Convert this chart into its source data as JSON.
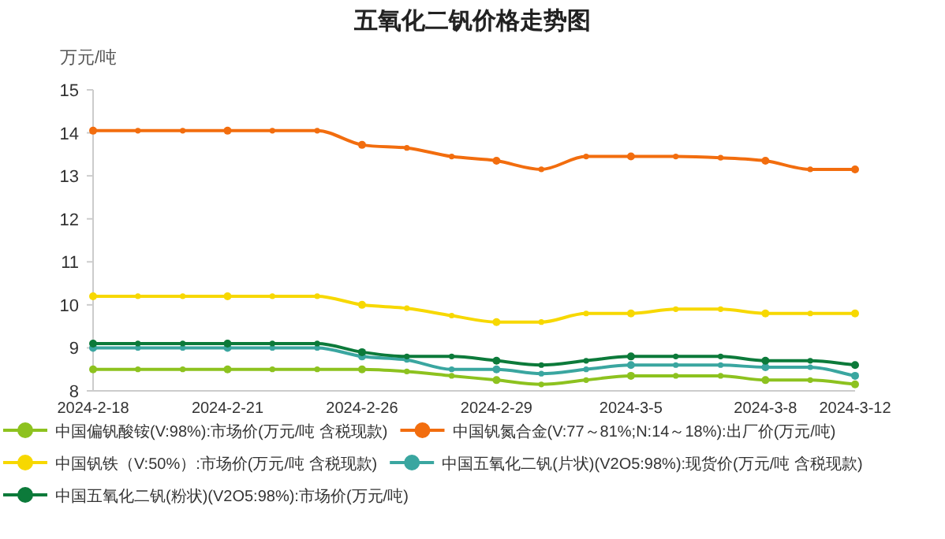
{
  "chart_data": {
    "type": "line",
    "title": "五氧化二钒价格走势图",
    "ylabel": "万元/吨",
    "categories": [
      "2024-2-18",
      null,
      null,
      "2024-2-21",
      null,
      null,
      "2024-2-26",
      null,
      null,
      "2024-2-29",
      null,
      null,
      "2024-3-5",
      null,
      null,
      "2024-3-8",
      null,
      "2024-3-12"
    ],
    "series": [
      {
        "name": "中国偏钒酸铵(V:98%):市场价(万元/吨 含税现款)",
        "color": "#8dc21f",
        "values": [
          8.5,
          8.5,
          8.5,
          8.5,
          8.5,
          8.5,
          8.5,
          8.45,
          8.35,
          8.25,
          8.15,
          8.25,
          8.35,
          8.35,
          8.35,
          8.25,
          8.25,
          8.15
        ]
      },
      {
        "name": "中国钒氮合金(V:77～81%;N:14～18%):出厂价(万元/吨)",
        "color": "#f26d0e",
        "values": [
          14.05,
          14.05,
          14.05,
          14.05,
          14.05,
          14.05,
          13.72,
          13.65,
          13.45,
          13.35,
          13.15,
          13.45,
          13.45,
          13.45,
          13.42,
          13.35,
          13.15,
          13.15
        ]
      },
      {
        "name": "中国钒铁（V:50%）:市场价(万元/吨 含税现款)",
        "color": "#f7d800",
        "values": [
          10.2,
          10.2,
          10.2,
          10.2,
          10.2,
          10.2,
          10.0,
          9.92,
          9.75,
          9.6,
          9.6,
          9.8,
          9.8,
          9.9,
          9.9,
          9.8,
          9.8,
          9.8
        ]
      },
      {
        "name": "中国五氧化二钒(片状)(V2O5:98%):现货价(万元/吨 含税现款)",
        "color": "#3aa6a0",
        "values": [
          9.0,
          9.0,
          9.0,
          9.0,
          9.0,
          9.0,
          8.8,
          8.72,
          8.5,
          8.5,
          8.4,
          8.5,
          8.6,
          8.6,
          8.6,
          8.55,
          8.55,
          8.35
        ]
      },
      {
        "name": "中国五氧化二钒(粉状)(V2O5:98%):市场价(万元/吨)",
        "color": "#0c7a3a",
        "values": [
          9.1,
          9.1,
          9.1,
          9.1,
          9.1,
          9.1,
          8.9,
          8.8,
          8.8,
          8.7,
          8.6,
          8.7,
          8.8,
          8.8,
          8.8,
          8.7,
          8.7,
          8.6
        ]
      }
    ],
    "ylim": [
      8,
      15
    ],
    "yticks": [
      8,
      9,
      10,
      11,
      12,
      13,
      14,
      15
    ],
    "grid": false,
    "legend": "bottom",
    "marker": "circle",
    "line_style": "solid"
  }
}
